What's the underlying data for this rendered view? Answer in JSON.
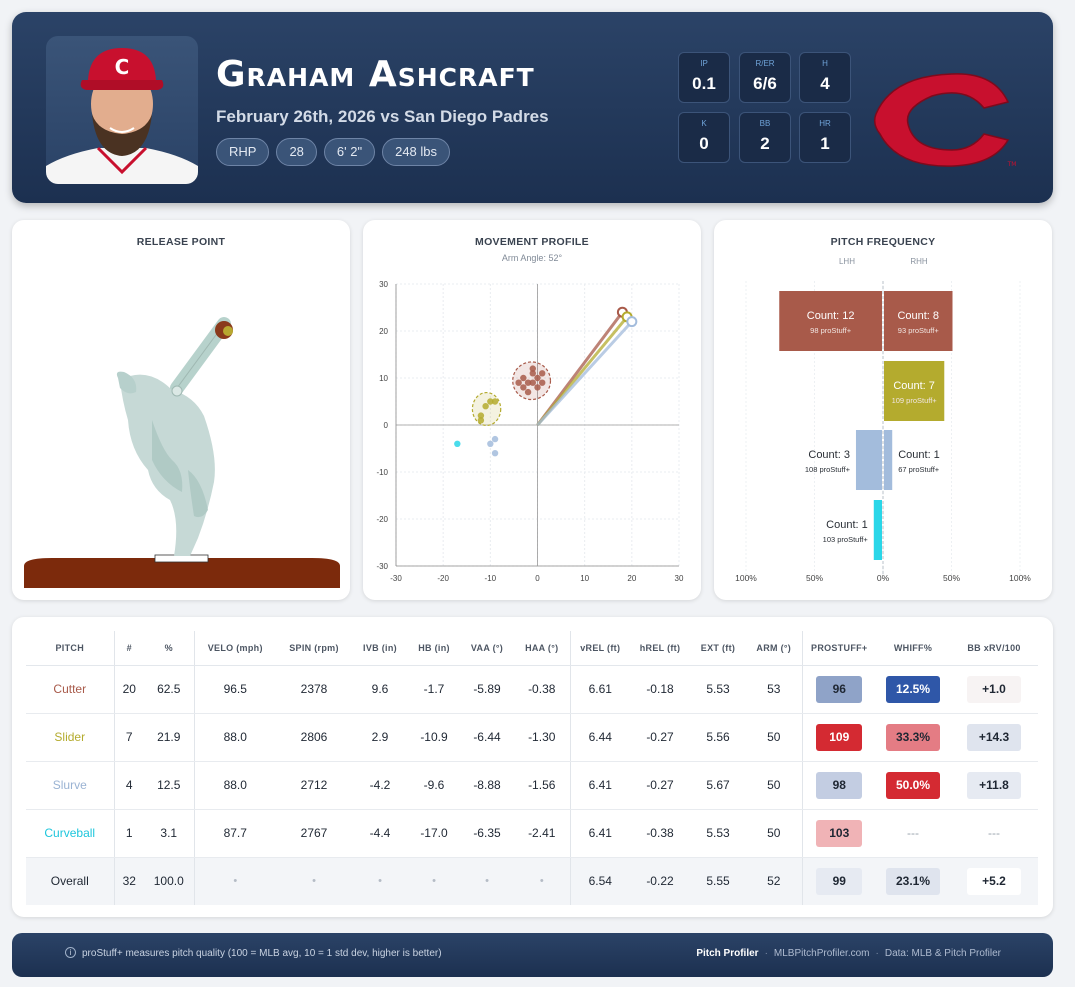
{
  "header": {
    "player_name": "Graham Ashcraft",
    "game_line": "February 26th, 2026 vs San Diego Padres",
    "chips": [
      "RHP",
      "28",
      "6' 2\"",
      "248 lbs"
    ],
    "stats": [
      {
        "label": "IP",
        "value": "0.1"
      },
      {
        "label": "R/ER",
        "value": "6/6"
      },
      {
        "label": "H",
        "value": "4"
      },
      {
        "label": "K",
        "value": "0"
      },
      {
        "label": "BB",
        "value": "2"
      },
      {
        "label": "HR",
        "value": "1"
      }
    ],
    "logo_trademark": "TM"
  },
  "colors": {
    "cutter": "#a85a4a",
    "slider": "#b4ab2e",
    "slurve": "#a3bcdc",
    "curveball": "#2ad6e8",
    "reds_red": "#c8102e",
    "navy": "#1f3456"
  },
  "panels": {
    "release_title": "RELEASE POINT",
    "movement_title": "MOVEMENT PROFILE",
    "movement_subtitle": "Arm Angle: 52°",
    "frequency_title": "PITCH FREQUENCY"
  },
  "chart_data": [
    {
      "type": "scatter",
      "title": "MOVEMENT PROFILE",
      "subtitle": "Arm Angle: 52°",
      "xlim": [
        -30,
        30
      ],
      "ylim": [
        -30,
        30
      ],
      "xticks": [
        -30,
        -20,
        -10,
        0,
        10,
        20,
        30
      ],
      "yticks": [
        30,
        20,
        10,
        0,
        -10,
        -20,
        -30
      ],
      "grid": true,
      "series": [
        {
          "pitch": "Cutter",
          "points": [
            [
              -1,
              11
            ],
            [
              -2,
              9
            ],
            [
              0,
              10
            ],
            [
              -3,
              8
            ],
            [
              -1,
              12
            ],
            [
              1,
              9
            ],
            [
              -2,
              7
            ],
            [
              0,
              8
            ],
            [
              -3,
              10
            ],
            [
              1,
              11
            ],
            [
              -1,
              9
            ],
            [
              -4,
              9
            ]
          ]
        },
        {
          "pitch": "Slider",
          "points": [
            [
              -12,
              2
            ],
            [
              -11,
              4
            ],
            [
              -10,
              5
            ],
            [
              -12,
              1
            ],
            [
              -9,
              5
            ]
          ]
        },
        {
          "pitch": "Slurve",
          "points": [
            [
              -10,
              -4
            ],
            [
              -9,
              -6
            ],
            [
              -9,
              -3
            ]
          ]
        },
        {
          "pitch": "Curveball",
          "points": [
            [
              -17,
              -4
            ]
          ]
        }
      ],
      "arm_angle_lines": [
        {
          "pitch": "Cutter",
          "end": [
            18,
            24
          ]
        },
        {
          "pitch": "Slider",
          "end": [
            19,
            23
          ]
        },
        {
          "pitch": "Slurve",
          "end": [
            20,
            22
          ]
        }
      ]
    },
    {
      "type": "bar",
      "title": "PITCH FREQUENCY",
      "side_labels": [
        "LHH",
        "RHH"
      ],
      "axis_ticks": [
        "100%",
        "50%",
        "0%",
        "50%",
        "100%"
      ],
      "xlim": [
        -100,
        100
      ],
      "bars": [
        {
          "pitch": "Cutter",
          "side": "LHH",
          "percent": 75,
          "count_label": "Count: 12",
          "stuff_label": "98 proStuff+"
        },
        {
          "pitch": "Cutter",
          "side": "RHH",
          "percent": 50,
          "count_label": "Count: 8",
          "stuff_label": "93 proStuff+"
        },
        {
          "pitch": "Slider",
          "side": "RHH",
          "percent": 44,
          "count_label": "Count: 7",
          "stuff_label": "109 proStuff+"
        },
        {
          "pitch": "Slurve",
          "side": "LHH",
          "percent": 19,
          "count_label": "Count: 3",
          "stuff_label": "108 proStuff+"
        },
        {
          "pitch": "Slurve",
          "side": "RHH",
          "percent": 6,
          "count_label": "Count: 1",
          "stuff_label": "67 proStuff+"
        },
        {
          "pitch": "Curveball",
          "side": "LHH",
          "percent": 6,
          "count_label": "Count: 1",
          "stuff_label": "103 proStuff+"
        }
      ]
    }
  ],
  "table": {
    "headers": [
      "PITCH",
      "#",
      "%",
      "VELO (mph)",
      "SPIN (rpm)",
      "IVB (in)",
      "HB (in)",
      "VAA (°)",
      "HAA (°)",
      "vREL (ft)",
      "hREL (ft)",
      "EXT (ft)",
      "ARM (°)",
      "PROSTUFF+",
      "WHIFF%",
      "BB xRV/100"
    ],
    "rows": [
      {
        "pitch": "Cutter",
        "color": "#a85a4a",
        "n": "20",
        "pct": "62.5",
        "velo": "96.5",
        "spin": "2378",
        "ivb": "9.6",
        "hb": "-1.7",
        "vaa": "-5.89",
        "haa": "-0.38",
        "vrel": "6.61",
        "hrel": "-0.18",
        "ext": "5.53",
        "arm": "53",
        "stuff": "96",
        "stuff_bg": "#8fa3c8",
        "stuff_fg": "#1f2733",
        "whiff": "12.5%",
        "whiff_bg": "#2f57a8",
        "whiff_fg": "#ffffff",
        "xrv": "+1.0",
        "xrv_bg": "#f7f3f3",
        "xrv_fg": "#1f2733"
      },
      {
        "pitch": "Slider",
        "color": "#b4ab2e",
        "n": "7",
        "pct": "21.9",
        "velo": "88.0",
        "spin": "2806",
        "ivb": "2.9",
        "hb": "-10.9",
        "vaa": "-6.44",
        "haa": "-1.30",
        "vrel": "6.44",
        "hrel": "-0.27",
        "ext": "5.56",
        "arm": "50",
        "stuff": "109",
        "stuff_bg": "#d42a32",
        "stuff_fg": "#ffffff",
        "whiff": "33.3%",
        "whiff_bg": "#e47c84",
        "whiff_fg": "#1f2733",
        "xrv": "+14.3",
        "xrv_bg": "#dfe4ee",
        "xrv_fg": "#1f2733"
      },
      {
        "pitch": "Slurve",
        "color": "#9ab3d3",
        "n": "4",
        "pct": "12.5",
        "velo": "88.0",
        "spin": "2712",
        "ivb": "-4.2",
        "hb": "-9.6",
        "vaa": "-8.88",
        "haa": "-1.56",
        "vrel": "6.41",
        "hrel": "-0.27",
        "ext": "5.67",
        "arm": "50",
        "stuff": "98",
        "stuff_bg": "#c3cde2",
        "stuff_fg": "#1f2733",
        "whiff": "50.0%",
        "whiff_bg": "#d42a32",
        "whiff_fg": "#ffffff",
        "xrv": "+11.8",
        "xrv_bg": "#e6eaf2",
        "xrv_fg": "#1f2733"
      },
      {
        "pitch": "Curveball",
        "color": "#1ec6dc",
        "n": "1",
        "pct": "3.1",
        "velo": "87.7",
        "spin": "2767",
        "ivb": "-4.4",
        "hb": "-17.0",
        "vaa": "-6.35",
        "haa": "-2.41",
        "vrel": "6.41",
        "hrel": "-0.38",
        "ext": "5.53",
        "arm": "50",
        "stuff": "103",
        "stuff_bg": "#f0b3b6",
        "stuff_fg": "#1f2733",
        "whiff": "---",
        "whiff_bg": "",
        "whiff_fg": "#9aa3ae",
        "xrv": "---",
        "xrv_bg": "",
        "xrv_fg": "#9aa3ae"
      },
      {
        "pitch": "Overall",
        "color": "#1f2733",
        "n": "32",
        "pct": "100.0",
        "velo": "•",
        "spin": "•",
        "ivb": "•",
        "hb": "•",
        "vaa": "•",
        "haa": "•",
        "vrel": "6.54",
        "hrel": "-0.22",
        "ext": "5.55",
        "arm": "52",
        "stuff": "99",
        "stuff_bg": "#e6eaf2",
        "stuff_fg": "#1f2733",
        "whiff": "23.1%",
        "whiff_bg": "#dfe4ee",
        "whiff_fg": "#1f2733",
        "xrv": "+5.2",
        "xrv_bg": "#ffffff",
        "xrv_fg": "#1f2733"
      }
    ]
  },
  "footer": {
    "info_icon": "i",
    "note": "proStuff+ measures pitch quality (100 = MLB avg, 10 = 1 std dev, higher is better)",
    "brand": "Pitch Profiler",
    "site": "MLBPitchProfiler.com",
    "source": "Data: MLB & Pitch Profiler",
    "separator": "·"
  }
}
